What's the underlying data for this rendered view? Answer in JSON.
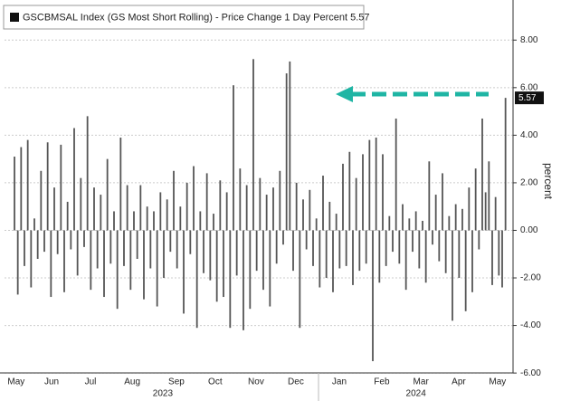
{
  "chart_data": {
    "type": "bar",
    "series": [
      {
        "name": "GSCBMSAL Index (GS Most Short Rolling) - Price Change 1 Day Percent 5.57",
        "color": "#555555",
        "values": [
          3.1,
          -2.7,
          3.5,
          -1.5,
          3.8,
          -2.4,
          0.5,
          -1.2,
          2.5,
          -0.9,
          3.7,
          -2.8,
          1.8,
          -1.0,
          3.6,
          -2.6,
          1.2,
          -0.8,
          4.3,
          -1.9,
          2.2,
          -0.7,
          4.8,
          -2.5,
          1.8,
          -1.6,
          1.5,
          -2.8,
          3.0,
          -1.4,
          0.8,
          -3.3,
          3.9,
          -1.5,
          1.9,
          -2.5,
          0.8,
          -1.2,
          1.9,
          -2.9,
          1.0,
          -1.6,
          0.8,
          -3.2,
          1.6,
          -2.0,
          1.3,
          -0.9,
          2.5,
          -1.6,
          1.0,
          -3.5,
          2.0,
          -1.0,
          2.7,
          -4.1,
          0.8,
          -1.8,
          2.4,
          -2.1,
          0.7,
          -3.0,
          2.1,
          -2.8,
          1.6,
          -4.1,
          6.1,
          -1.9,
          2.6,
          -4.2,
          1.9,
          -3.3,
          7.2,
          -1.7,
          2.2,
          -2.5,
          1.5,
          -3.2,
          1.8,
          -1.4,
          2.5,
          -0.6,
          6.6,
          7.1,
          -1.7,
          2.0,
          -4.1,
          1.3,
          -0.8,
          1.7,
          -1.5,
          0.5,
          -2.4,
          2.3,
          -2.0,
          1.2,
          -2.6,
          0.7,
          -1.6,
          2.8,
          -1.5,
          3.3,
          -2.3,
          2.2,
          -1.7,
          3.2,
          -1.4,
          3.8,
          -5.5,
          3.9,
          -2.2,
          3.2,
          -1.5,
          0.6,
          -0.9,
          4.7,
          -1.4,
          1.1,
          -2.5,
          0.5,
          -0.9,
          0.8,
          -1.6,
          0.4,
          -2.2,
          2.9,
          -0.6,
          1.5,
          -1.3,
          2.4,
          -1.8,
          0.6,
          -3.8,
          1.1,
          -2.0,
          0.9,
          -3.4,
          1.8,
          -2.6,
          2.6,
          -0.8,
          4.7,
          1.6,
          2.9,
          -2.3,
          1.4,
          -1.9,
          -2.4,
          5.57
        ]
      }
    ],
    "xlim": [
      -3,
      150
    ],
    "xticks": [
      {
        "value": 0.5,
        "label": "May"
      },
      {
        "value": 11.2,
        "label": "Jun"
      },
      {
        "value": 22.9,
        "label": "Jul"
      },
      {
        "value": 35.5,
        "label": "Aug"
      },
      {
        "value": 48.8,
        "label": "Sep"
      },
      {
        "value": 60.5,
        "label": "Oct"
      },
      {
        "value": 72.8,
        "label": "Nov"
      },
      {
        "value": 84.8,
        "label": "Dec"
      },
      {
        "value": 97.9,
        "label": "Jan"
      },
      {
        "value": 110.7,
        "label": "Feb"
      },
      {
        "value": 122.5,
        "label": "Mar"
      },
      {
        "value": 133.9,
        "label": "Apr"
      },
      {
        "value": 145.6,
        "label": "May"
      }
    ],
    "year_ticks": [
      {
        "value": 44.7,
        "label": "2023"
      },
      {
        "value": 121,
        "label": "2024"
      }
    ],
    "ylim": [
      -6.3,
      9
    ],
    "yticks": [
      {
        "value": 8,
        "label": "8.00"
      },
      {
        "value": 6,
        "label": "6.00"
      },
      {
        "value": 4,
        "label": "4.00"
      },
      {
        "value": 2,
        "label": "2.00"
      },
      {
        "value": 0,
        "label": "0.00"
      },
      {
        "value": -2,
        "label": "-2.00"
      },
      {
        "value": -4,
        "label": "-4.00"
      },
      {
        "value": -6,
        "label": "-6.00"
      }
    ],
    "y_label": "percent",
    "grid": true
  }
}
